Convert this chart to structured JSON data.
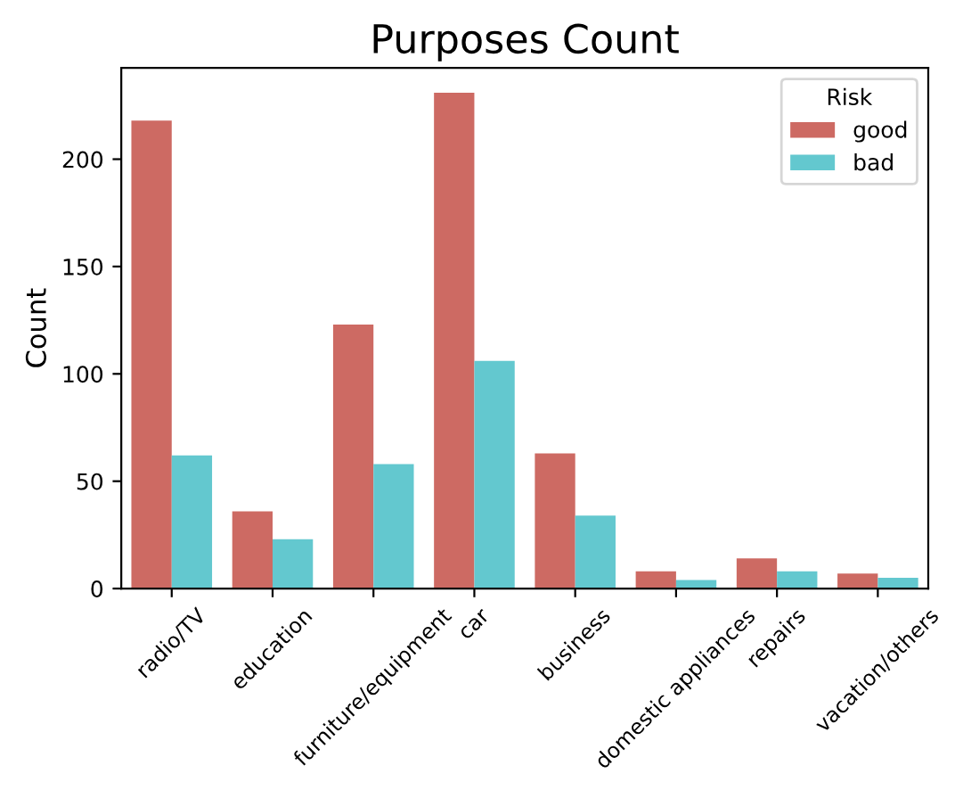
{
  "chart_data": {
    "type": "bar",
    "title": "Purposes Count",
    "ylabel": "Count",
    "legend_title": "Risk",
    "categories": [
      "radio/TV",
      "education",
      "furniture/equipment",
      "car",
      "business",
      "domestic appliances",
      "repairs",
      "vacation/others"
    ],
    "series": [
      {
        "name": "good",
        "color": "#cd6a63",
        "values": [
          218,
          36,
          123,
          231,
          63,
          8,
          14,
          7
        ]
      },
      {
        "name": "bad",
        "color": "#63c8cf",
        "values": [
          62,
          23,
          58,
          106,
          34,
          4,
          8,
          5
        ]
      }
    ],
    "ylim": [
      0,
      242.5
    ],
    "yticks": [
      0,
      50,
      100,
      150,
      200
    ],
    "legend": "top right",
    "grid": false
  }
}
